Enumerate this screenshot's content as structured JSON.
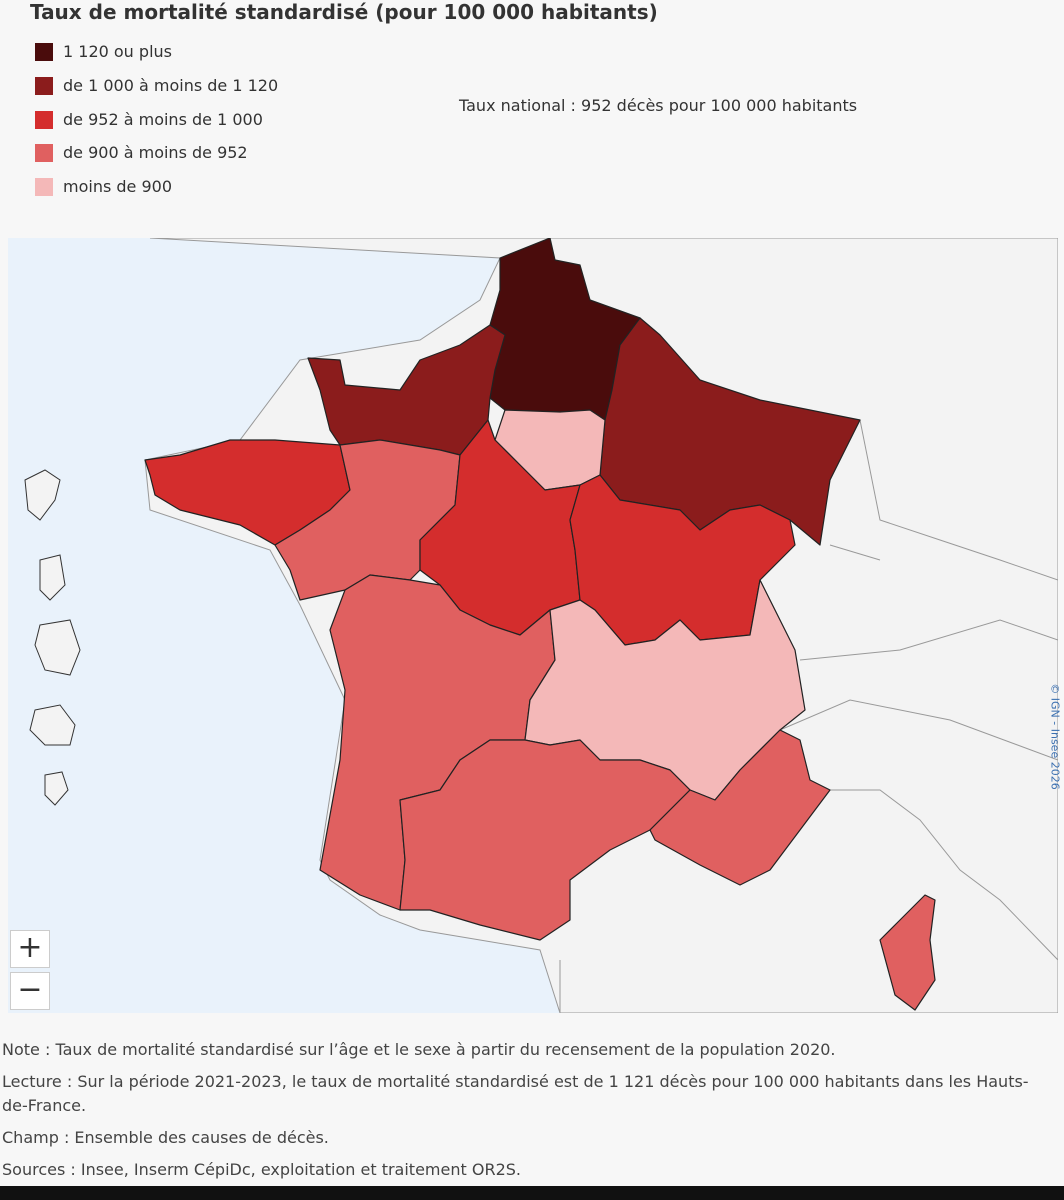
{
  "header": {
    "title": "Taux de mortalité standardisé (pour 100 000 habitants)"
  },
  "legend": {
    "items": [
      {
        "label": "1 120 ou plus",
        "color": "#4a0c0c"
      },
      {
        "label": "de 1 000 à moins de 1 120",
        "color": "#8b1c1c"
      },
      {
        "label": "de 952 à moins de 1 000",
        "color": "#d42d2d"
      },
      {
        "label": "de 900 à moins de 952",
        "color": "#e06060"
      },
      {
        "label": "moins de 900",
        "color": "#f4b8b8"
      }
    ]
  },
  "national_rate": "Taux national : 952 décès pour 100 000 habitants",
  "map": {
    "copyright": "© IGN - Insee 2026",
    "zoom_in": "+",
    "zoom_out": "−"
  },
  "notes": [
    "Note : Taux de mortalité standardisé sur l’âge et le sexe à partir du recensement de la population 2020.",
    "Lecture : Sur la période 2021-2023, le taux de mortalité standardisé est de 1 121 décès pour 100 000 habitants dans les Hauts-de-France.",
    "Champ : Ensemble des causes de décès.",
    "Sources : Insee, Inserm CépiDc, exploitation et traitement OR2S."
  ]
}
